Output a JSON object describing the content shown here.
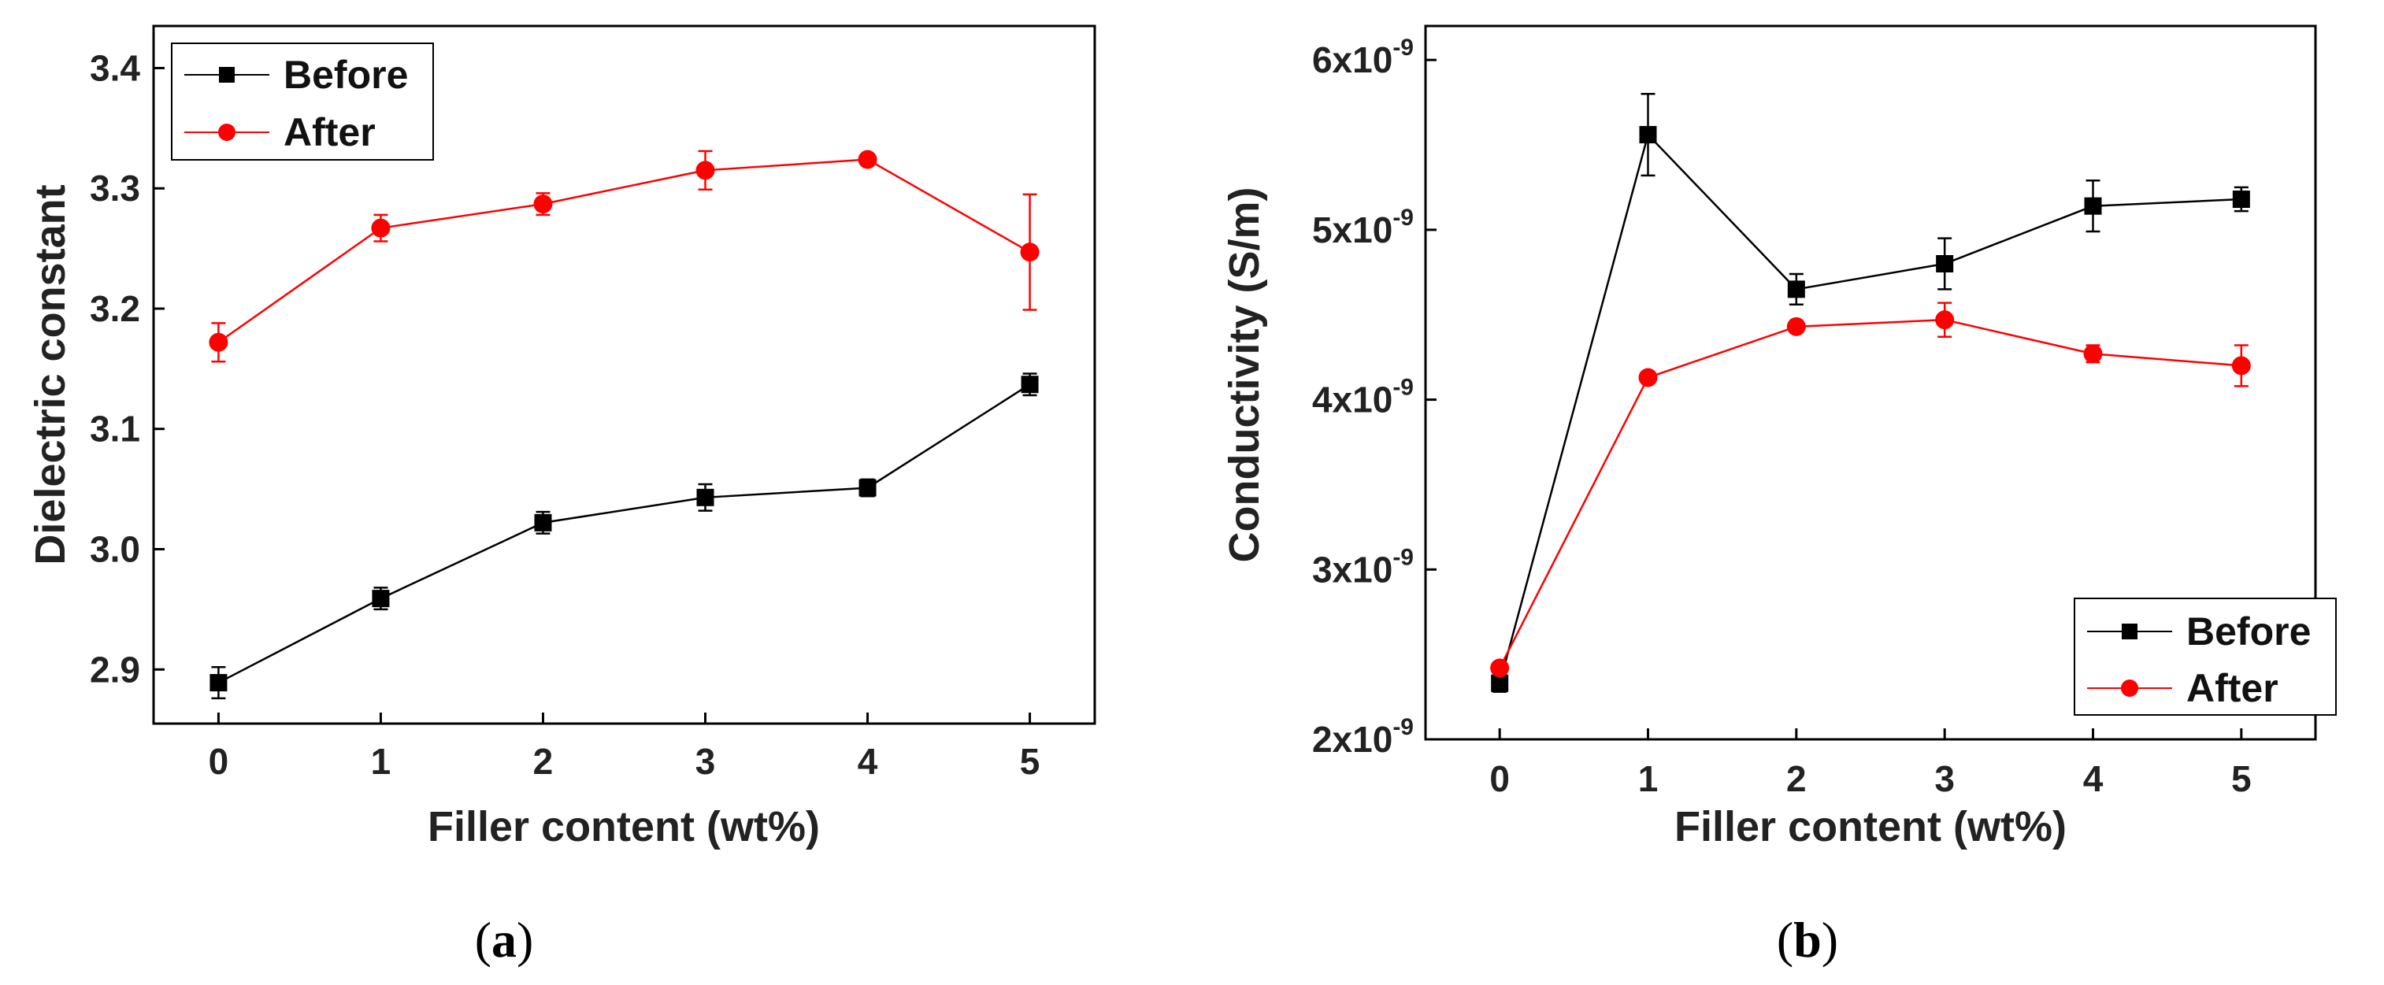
{
  "colors": {
    "before": "#000000",
    "after": "#ff0000",
    "axis": "#000000"
  },
  "panels": [
    {
      "label_open": "(",
      "label_letter": "a",
      "label_close": ")",
      "legend": {
        "before": "Before",
        "after": "After"
      },
      "y_tick_labels": [
        "2.9",
        "3.0",
        "3.1",
        "3.2",
        "3.3",
        "3.4"
      ],
      "x_tick_labels": [
        "0",
        "1",
        "2",
        "3",
        "4",
        "5"
      ]
    },
    {
      "label_open": "(",
      "label_letter": "b",
      "label_close": ")",
      "legend": {
        "before": "Before",
        "after": "After"
      },
      "y_tick_labels": [
        {
          "mantissa": "2x10",
          "exponent": "-9"
        },
        {
          "mantissa": "3x10",
          "exponent": "-9"
        },
        {
          "mantissa": "4x10",
          "exponent": "-9"
        },
        {
          "mantissa": "5x10",
          "exponent": "-9"
        },
        {
          "mantissa": "6x10",
          "exponent": "-9"
        }
      ],
      "x_tick_labels": [
        "0",
        "1",
        "2",
        "3",
        "4",
        "5"
      ]
    }
  ],
  "chart_data": [
    {
      "type": "line",
      "title": "",
      "xlabel": "Filler content (wt%)",
      "ylabel": "Dielectric constant",
      "x": [
        0,
        1,
        2,
        3,
        4,
        5
      ],
      "xlim": [
        -0.4,
        5.4
      ],
      "ylim": [
        2.855,
        3.435
      ],
      "yticks": [
        2.9,
        3.0,
        3.1,
        3.2,
        3.3,
        3.4
      ],
      "legend_position": "top-left",
      "series": [
        {
          "name": "Before",
          "marker": "square",
          "color": "#000000",
          "values": [
            2.889,
            2.959,
            3.022,
            3.043,
            3.051,
            3.137
          ],
          "errors": [
            0.013,
            0.009,
            0.009,
            0.011,
            0.007,
            0.009
          ]
        },
        {
          "name": "After",
          "marker": "circle",
          "color": "#ff0000",
          "values": [
            3.172,
            3.267,
            3.287,
            3.315,
            3.324,
            3.247
          ],
          "errors": [
            0.016,
            0.011,
            0.009,
            0.016,
            0.004,
            0.048
          ]
        }
      ]
    },
    {
      "type": "line",
      "title": "",
      "xlabel": "Filler content (wt%)",
      "ylabel": "Conductivity (S/m)",
      "x": [
        0,
        1,
        2,
        3,
        4,
        5
      ],
      "xlim": [
        -0.5,
        5.5
      ],
      "ylim": [
        2e-09,
        6.2e-09
      ],
      "yticks": [
        2e-09,
        3e-09,
        4e-09,
        5e-09,
        6e-09
      ],
      "legend_position": "bottom-right",
      "series": [
        {
          "name": "Before",
          "marker": "square",
          "color": "#000000",
          "values": [
            2.33e-09,
            5.56e-09,
            4.65e-09,
            4.8e-09,
            5.14e-09,
            5.18e-09
          ],
          "errors": [
            5e-11,
            2.4e-10,
            9e-11,
            1.5e-10,
            1.5e-10,
            7e-11
          ]
        },
        {
          "name": "After",
          "marker": "circle",
          "color": "#ff0000",
          "values": [
            2.42e-09,
            4.13e-09,
            4.43e-09,
            4.47e-09,
            4.27e-09,
            4.2e-09
          ],
          "errors": [
            2e-11,
            2e-11,
            3e-11,
            1e-10,
            5e-11,
            1.2e-10
          ]
        }
      ]
    }
  ]
}
